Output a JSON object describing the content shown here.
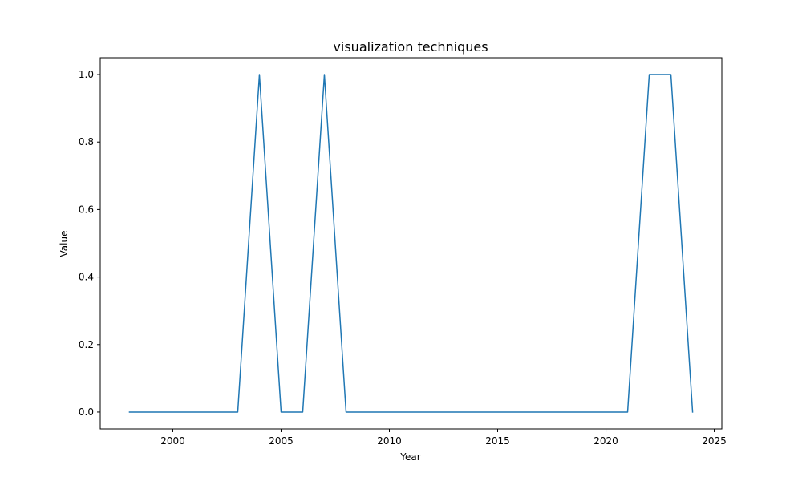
{
  "chart_data": {
    "type": "line",
    "title": "visualization techniques",
    "xlabel": "Year",
    "ylabel": "Value",
    "xlim": [
      1996.65,
      2025.35
    ],
    "ylim": [
      -0.05,
      1.05
    ],
    "xticks": [
      2000,
      2005,
      2010,
      2015,
      2020,
      2025
    ],
    "xtick_labels": [
      "2000",
      "2005",
      "2010",
      "2015",
      "2020",
      "2025"
    ],
    "yticks": [
      0.0,
      0.2,
      0.4,
      0.6,
      0.8,
      1.0
    ],
    "ytick_labels": [
      "0.0",
      "0.2",
      "0.4",
      "0.6",
      "0.8",
      "1.0"
    ],
    "grid": false,
    "series": [
      {
        "color": "#1f77b4",
        "x": [
          1998,
          1999,
          2000,
          2001,
          2002,
          2003,
          2004,
          2005,
          2006,
          2007,
          2008,
          2009,
          2010,
          2011,
          2012,
          2013,
          2014,
          2015,
          2016,
          2017,
          2018,
          2019,
          2020,
          2021,
          2022,
          2023,
          2024
        ],
        "values": [
          0,
          0,
          0,
          0,
          0,
          0,
          1,
          0,
          0,
          1,
          0,
          0,
          0,
          0,
          0,
          0,
          0,
          0,
          0,
          0,
          0,
          0,
          0,
          0,
          1,
          1,
          0
        ]
      }
    ]
  }
}
